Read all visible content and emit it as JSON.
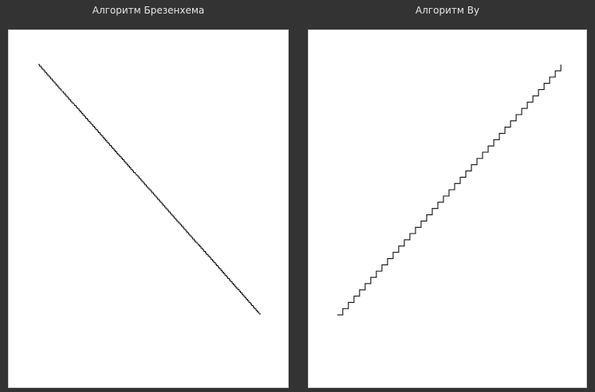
{
  "panels": {
    "left": {
      "title": "Алгоритм Брезенхема"
    },
    "right": {
      "title": "Алгоритм Ву"
    }
  },
  "colors": {
    "background": "#333333",
    "canvas": "#ffffff",
    "line": "#111111",
    "title_text": "#e6e6e6"
  }
}
